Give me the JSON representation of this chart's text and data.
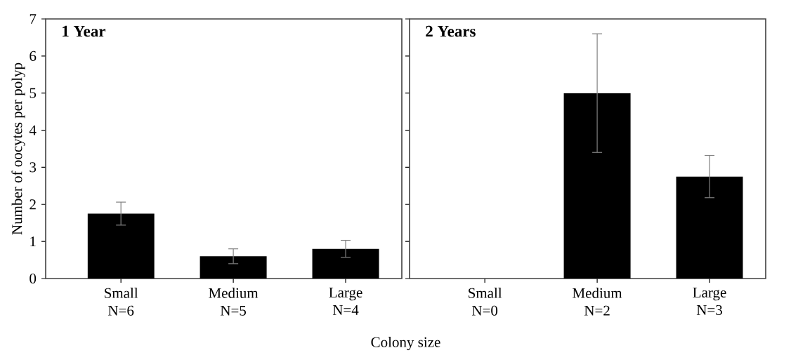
{
  "chart_data": [
    {
      "type": "bar",
      "title": "1 Year",
      "ylabel": "Number of oocytes per polyp",
      "xlabel": "Colony size",
      "categories": [
        "Small N=6",
        "Medium N=5",
        "Large N=4"
      ],
      "series": [
        {
          "color": "#000000",
          "values": [
            1.75,
            0.6,
            0.8
          ],
          "errors": [
            0.31,
            0.2,
            0.23
          ]
        }
      ],
      "ylim": [
        0,
        7
      ],
      "yticks": [
        0,
        1,
        2,
        3,
        4,
        5,
        6,
        7
      ],
      "grid": false
    },
    {
      "type": "bar",
      "title": "2 Years",
      "categories": [
        "Small N=0",
        "Medium N=2",
        "Large N=3"
      ],
      "series": [
        {
          "color": "#000000",
          "values": [
            0,
            5.0,
            2.75
          ],
          "errors": [
            null,
            1.6,
            0.57
          ]
        }
      ],
      "ylim": [
        0,
        7
      ],
      "yticks": [
        0,
        1,
        2,
        3,
        4,
        5,
        6,
        7
      ],
      "tick_labels": "x",
      "grid": false
    }
  ]
}
